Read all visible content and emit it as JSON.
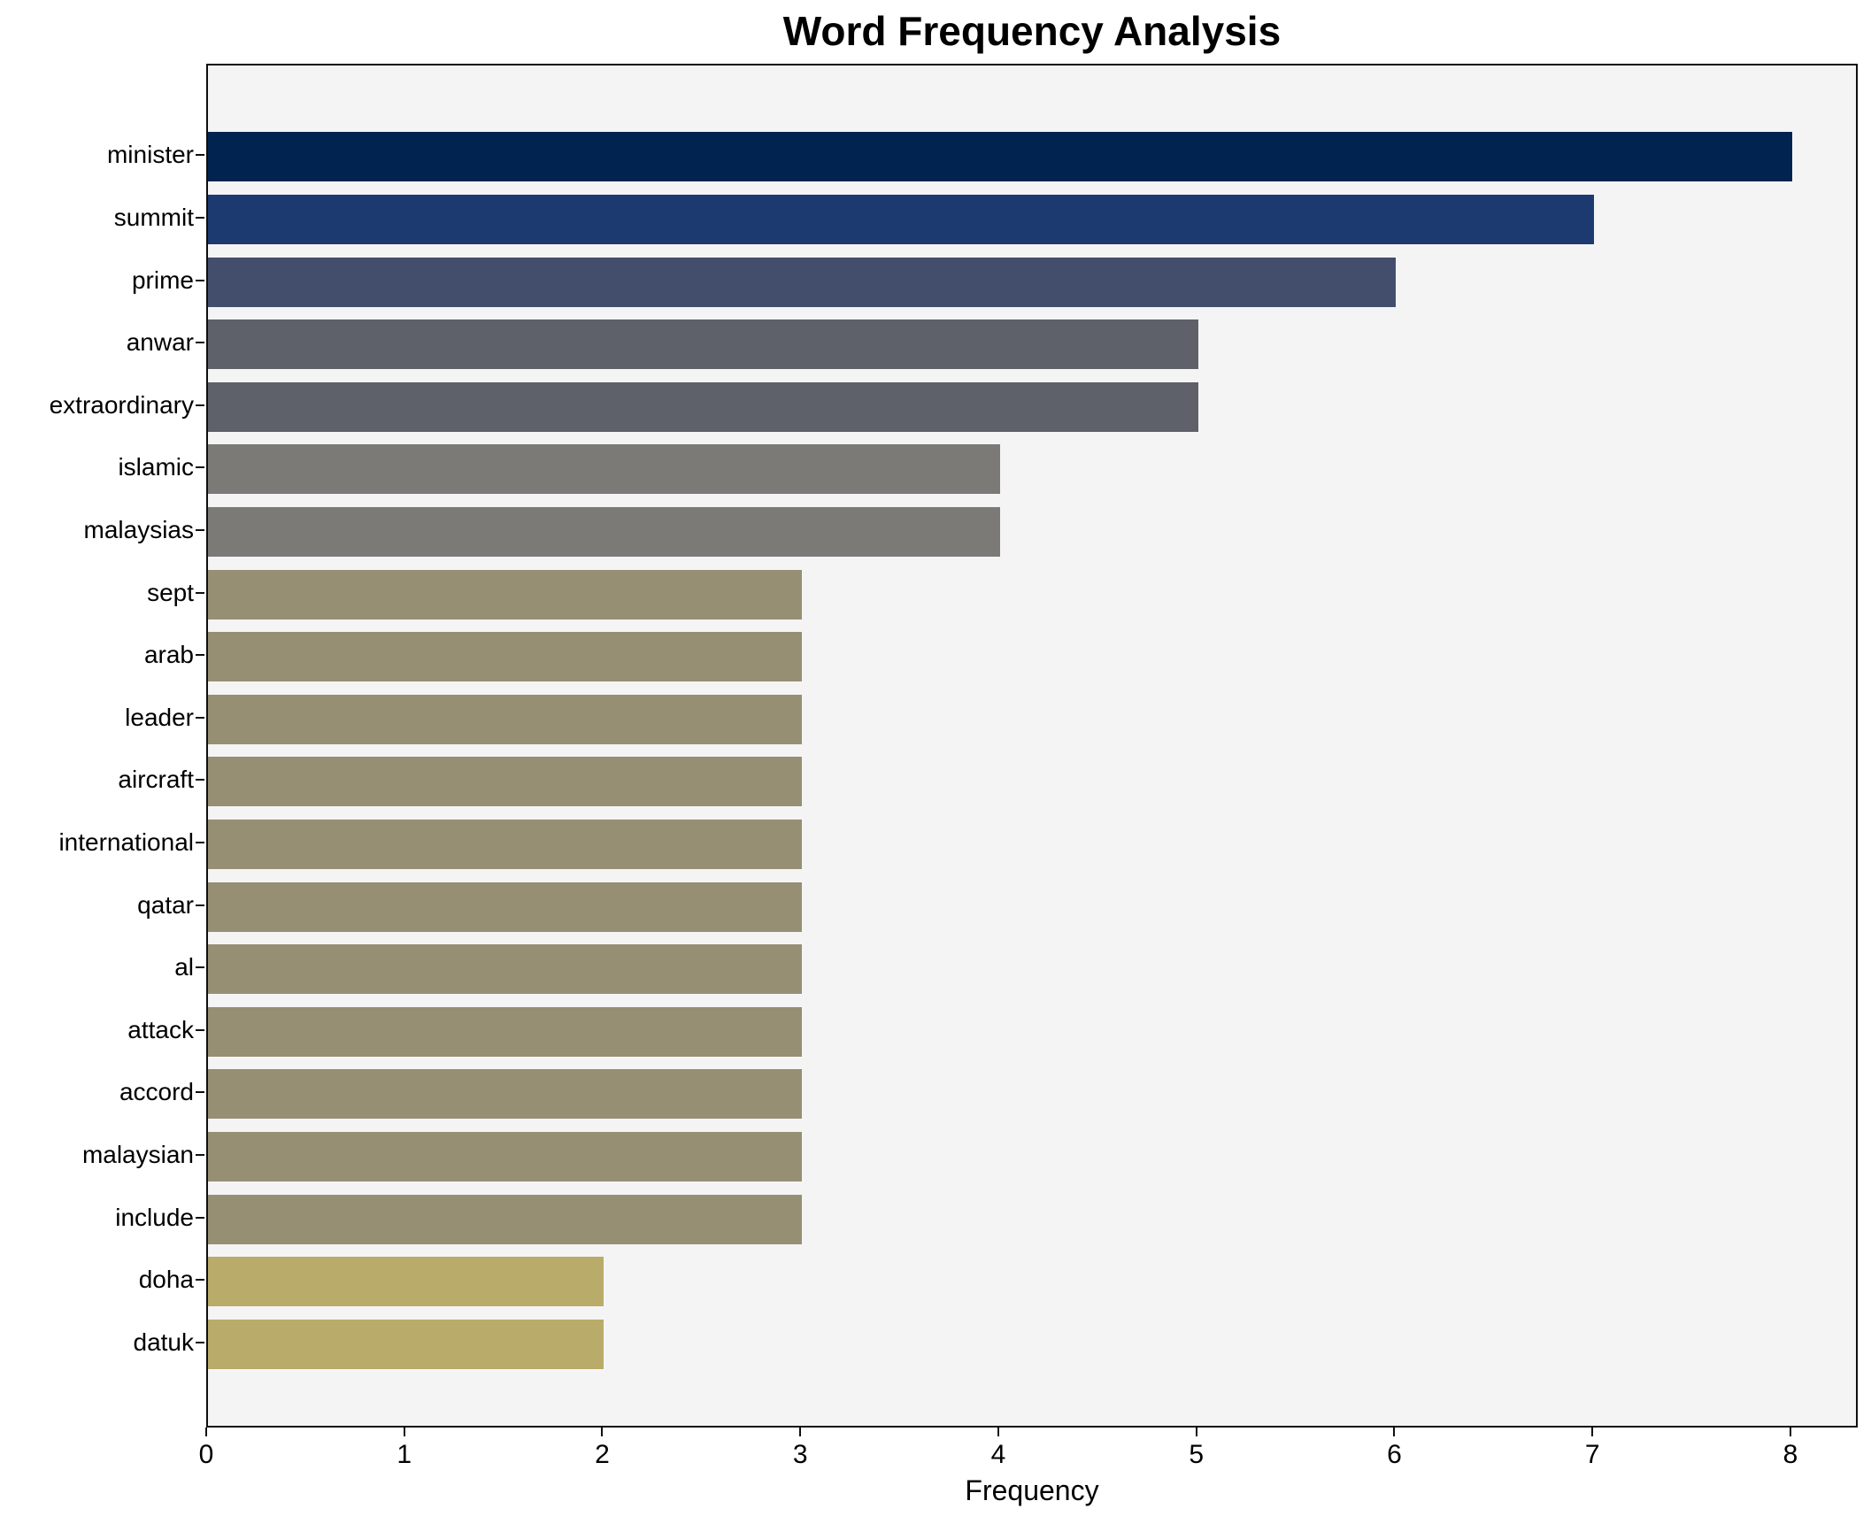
{
  "chart_data": {
    "type": "bar",
    "orientation": "horizontal",
    "title": "Word Frequency Analysis",
    "xlabel": "Frequency",
    "ylabel": "",
    "categories": [
      "minister",
      "summit",
      "prime",
      "anwar",
      "extraordinary",
      "islamic",
      "malaysias",
      "sept",
      "arab",
      "leader",
      "aircraft",
      "international",
      "qatar",
      "al",
      "attack",
      "accord",
      "malaysian",
      "include",
      "doha",
      "datuk"
    ],
    "values": [
      8,
      7,
      6,
      5,
      5,
      4,
      4,
      3,
      3,
      3,
      3,
      3,
      3,
      3,
      3,
      3,
      3,
      3,
      2,
      2
    ],
    "bar_colors": [
      "#00234f",
      "#1c3a70",
      "#434e6c",
      "#5e6169",
      "#5e6169",
      "#7b7a77",
      "#7b7a77",
      "#968f73",
      "#968f73",
      "#968f73",
      "#968f73",
      "#968f73",
      "#968f73",
      "#968f73",
      "#968f73",
      "#968f73",
      "#968f73",
      "#968f73",
      "#b9ab69",
      "#b9ab69"
    ],
    "value_color_map": {
      "8": "#00234f",
      "7": "#1c3a70",
      "6": "#434e6c",
      "5": "#5e6169",
      "4": "#7b7a77",
      "3": "#968f73",
      "2": "#b9ab69"
    },
    "xticks": [
      0,
      1,
      2,
      3,
      4,
      5,
      6,
      7,
      8
    ],
    "xlim": [
      0,
      8.34
    ],
    "grid": false,
    "legend": null,
    "plot_background": "#f5f4f5",
    "figure_background": "#ffffff",
    "spine_color": "#0f0f0f",
    "text_color": "#000000"
  }
}
